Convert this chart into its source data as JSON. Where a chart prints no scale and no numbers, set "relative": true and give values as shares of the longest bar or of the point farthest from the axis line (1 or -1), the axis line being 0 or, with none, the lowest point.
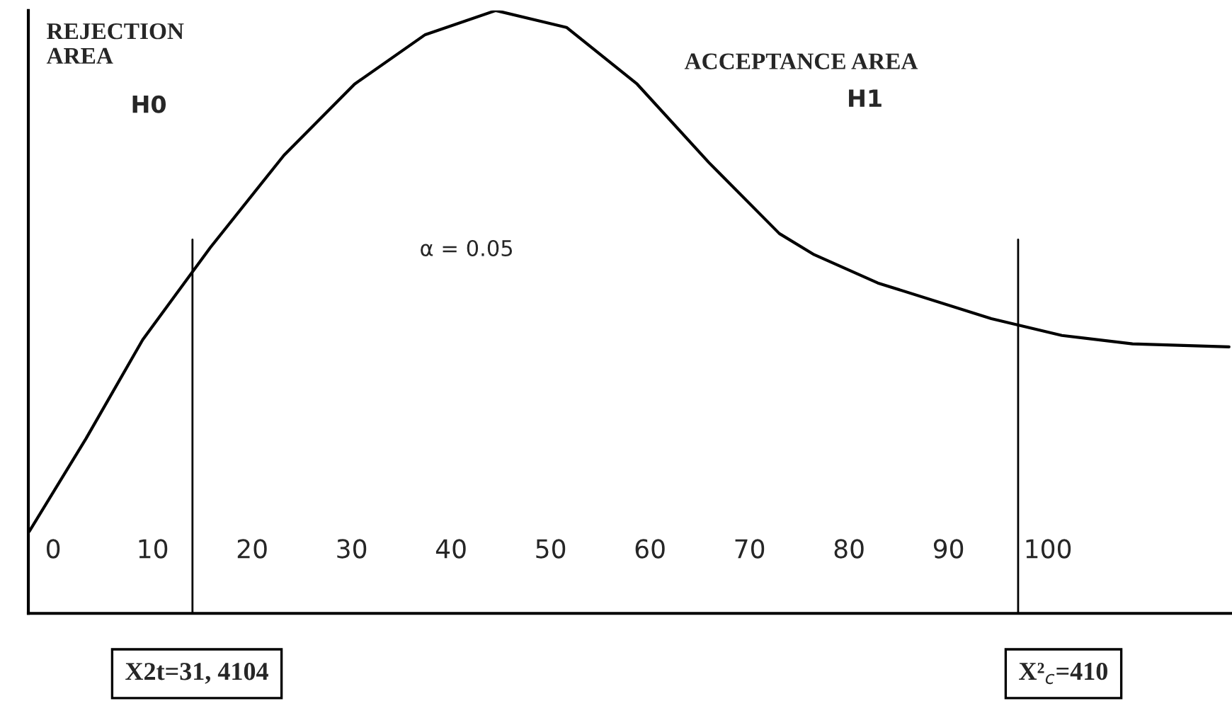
{
  "chart_data": {
    "type": "line",
    "relative": true,
    "x": [
      -2.4,
      3.3,
      9.0,
      15.8,
      23.2,
      30.3,
      37.4,
      44.5,
      51.6,
      58.7,
      65.9,
      73.0,
      76.5,
      82.9,
      94.3,
      101.4,
      108.5,
      118.2
    ],
    "series": [
      {
        "color": "#000000",
        "values": [
          0.136,
          0.29,
          0.454,
          0.607,
          0.76,
          0.878,
          0.96,
          1.0,
          0.972,
          0.878,
          0.748,
          0.63,
          0.595,
          0.548,
          0.489,
          0.461,
          0.447,
          0.442
        ]
      }
    ],
    "xlim": [
      -2.5,
      118.5
    ],
    "xticks": [
      0,
      10,
      20,
      30,
      40,
      50,
      60,
      70,
      80,
      90,
      100
    ],
    "ref_lines": [
      {
        "axis": "x",
        "value": 14
      },
      {
        "axis": "x",
        "value": 97
      }
    ],
    "annotations": [
      "REJECTION AREA",
      "H0",
      "ACCEPTANCE AREA",
      "H1",
      "α = 0.05",
      "X2t=31, 4104",
      "X²$_{c}$=410"
    ],
    "marker": "none",
    "line_style": "solid",
    "grid": false,
    "legend": false
  }
}
